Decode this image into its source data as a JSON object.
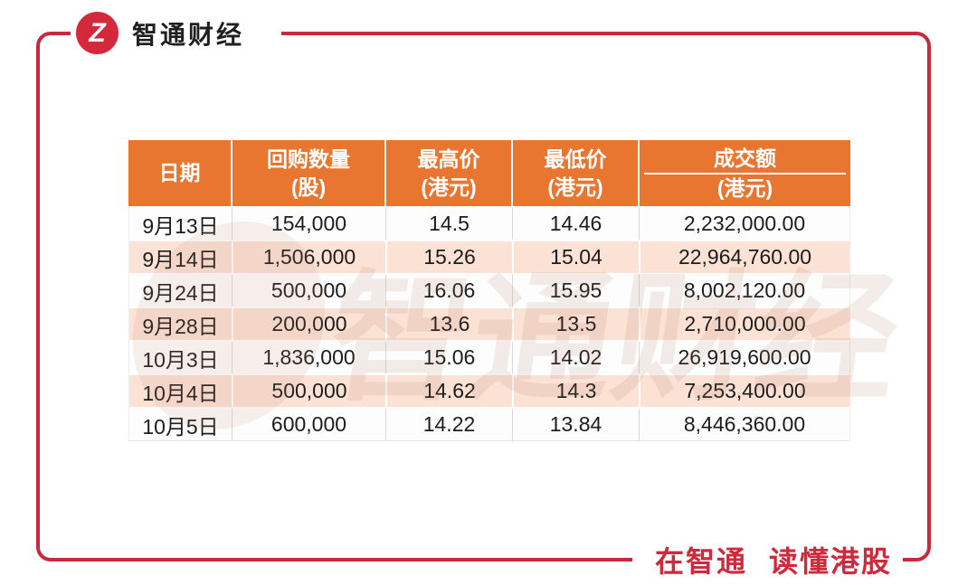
{
  "brand": {
    "name": "智通财经",
    "logo_letter": "Z"
  },
  "slogan": {
    "part1": "在智通",
    "part2": "读懂港股"
  },
  "watermark": {
    "text": "智通财经"
  },
  "colors": {
    "frame_red": "#C8293C",
    "logo_red": "#D4293B",
    "slogan_red": "#CE2A3C",
    "header_orange": "#E97630",
    "row_peach": "#FBE2D5"
  },
  "table": {
    "headers": [
      {
        "line1": "日期",
        "line2": "",
        "underline": false
      },
      {
        "line1": "回购数量",
        "line2": "(股)",
        "underline": false
      },
      {
        "line1": "最高价",
        "line2": "(港元)",
        "underline": false
      },
      {
        "line1": "最低价",
        "line2": "(港元)",
        "underline": false
      },
      {
        "line1": "成交额",
        "line2": "(港元)",
        "underline": true
      }
    ],
    "rows": [
      [
        "9月13日",
        "154,000",
        "14.5",
        "14.46",
        "2,232,000.00"
      ],
      [
        "9月14日",
        "1,506,000",
        "15.26",
        "15.04",
        "22,964,760.00"
      ],
      [
        "9月24日",
        "500,000",
        "16.06",
        "15.95",
        "8,002,120.00"
      ],
      [
        "9月28日",
        "200,000",
        "13.6",
        "13.5",
        "2,710,000.00"
      ],
      [
        "10月3日",
        "1,836,000",
        "15.06",
        "14.02",
        "26,919,600.00"
      ],
      [
        "10月4日",
        "500,000",
        "14.62",
        "14.3",
        "7,253,400.00"
      ],
      [
        "10月5日",
        "600,000",
        "14.22",
        "13.84",
        "8,446,360.00"
      ]
    ]
  },
  "chart_data": {
    "type": "table",
    "title": "",
    "columns": [
      "日期",
      "回购数量 (股)",
      "最高价 (港元)",
      "最低价 (港元)",
      "成交额 (港元)"
    ],
    "categories": [
      "9月13日",
      "9月14日",
      "9月24日",
      "9月28日",
      "10月3日",
      "10月4日",
      "10月5日"
    ],
    "series": [
      {
        "name": "回购数量(股)",
        "values": [
          154000,
          1506000,
          500000,
          200000,
          1836000,
          500000,
          600000
        ]
      },
      {
        "name": "最高价(港元)",
        "values": [
          14.5,
          15.26,
          16.06,
          13.6,
          15.06,
          14.62,
          14.22
        ]
      },
      {
        "name": "最低价(港元)",
        "values": [
          14.46,
          15.04,
          15.95,
          13.5,
          14.02,
          14.3,
          13.84
        ]
      },
      {
        "name": "成交额(港元)",
        "values": [
          2232000.0,
          22964760.0,
          8002120.0,
          2710000.0,
          26919600.0,
          7253400.0,
          8446360.0
        ]
      }
    ]
  }
}
